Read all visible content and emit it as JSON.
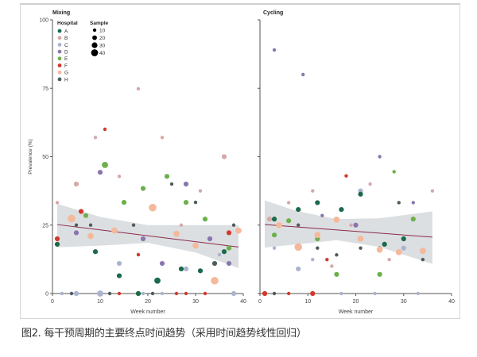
{
  "caption": "图2. 每干预周期的主要终点时间趋势（采用时间趋势线性回归）",
  "colors": {
    "A": "#1b6a4a",
    "B": "#d6a8a8",
    "C": "#aab4d0",
    "D": "#8a76ae",
    "E": "#6cb04b",
    "F": "#d3382d",
    "G": "#f4b99b",
    "H": "#4e5c5c"
  },
  "legend": {
    "hospital_title": "Hospital",
    "hospitals": [
      "A",
      "B",
      "C",
      "D",
      "E",
      "F",
      "G",
      "H"
    ],
    "sample_title": "Sample",
    "samples": [
      10,
      20,
      30,
      40
    ]
  },
  "chart_data": [
    {
      "type": "scatter",
      "title": "Mixing",
      "xlabel": "Week number",
      "ylabel": "Prevalence (%)",
      "xlim": [
        0,
        40
      ],
      "ylim": [
        0,
        100
      ],
      "xticks": [
        0,
        10,
        20,
        30,
        40
      ],
      "yticks": [
        0,
        25,
        50,
        75,
        100
      ],
      "trend": {
        "x": [
          1,
          39
        ],
        "y": [
          25.2,
          17
        ]
      },
      "band": {
        "x": [
          1,
          10,
          20,
          30,
          39
        ],
        "upper": [
          32.8,
          28,
          25,
          25,
          25
        ],
        "lower": [
          16.9,
          17.5,
          18.5,
          15,
          9.3
        ]
      },
      "points": [
        [
          "B",
          1,
          33.2,
          10
        ],
        [
          "G",
          4,
          27.4,
          40
        ],
        [
          "F",
          6,
          30,
          20
        ],
        [
          "E",
          7,
          28.5,
          20
        ],
        [
          "H",
          5,
          25,
          10
        ],
        [
          "H",
          8,
          25,
          10
        ],
        [
          "D",
          5,
          22.2,
          20
        ],
        [
          "F",
          1,
          20,
          20
        ],
        [
          "A",
          1,
          18,
          20
        ],
        [
          "G",
          8,
          21,
          30
        ],
        [
          "A",
          9,
          15.3,
          20
        ],
        [
          "B",
          5,
          40,
          20
        ],
        [
          "B",
          9,
          57,
          10
        ],
        [
          "F",
          11,
          60,
          10
        ],
        [
          "E",
          11,
          47,
          30
        ],
        [
          "D",
          10,
          44.3,
          20
        ],
        [
          "B",
          14,
          42.8,
          10
        ],
        [
          "E",
          15,
          33.3,
          20
        ],
        [
          "G",
          13,
          23,
          30
        ],
        [
          "C",
          14,
          11,
          20
        ],
        [
          "A",
          14,
          6.5,
          20
        ],
        [
          "B",
          18,
          74.8,
          10
        ],
        [
          "E",
          19,
          38.4,
          20
        ],
        [
          "H",
          17,
          25,
          10
        ],
        [
          "D",
          19,
          20,
          20
        ],
        [
          "F",
          18,
          14.2,
          10
        ],
        [
          "G",
          21,
          31.4,
          40
        ],
        [
          "A",
          22,
          4.7,
          30
        ],
        [
          "B",
          23,
          57,
          10
        ],
        [
          "E",
          24,
          42.8,
          20
        ],
        [
          "H",
          25,
          40,
          10
        ],
        [
          "D",
          28,
          40,
          20
        ],
        [
          "E",
          28,
          33.3,
          20
        ],
        [
          "H",
          30,
          33.3,
          10
        ],
        [
          "B",
          31,
          37.5,
          10
        ],
        [
          "E",
          32,
          27.2,
          20
        ],
        [
          "B",
          27,
          25,
          10
        ],
        [
          "G",
          26,
          21.8,
          30
        ],
        [
          "D",
          33,
          20,
          20
        ],
        [
          "G",
          30,
          17.5,
          30
        ],
        [
          "D",
          23,
          11,
          20
        ],
        [
          "A",
          27,
          9,
          20
        ],
        [
          "C",
          28,
          9,
          20
        ],
        [
          "A",
          31,
          8.3,
          20
        ],
        [
          "G",
          34,
          4.7,
          40
        ],
        [
          "H",
          34,
          11,
          20
        ],
        [
          "C",
          35,
          14.2,
          10
        ],
        [
          "A",
          36,
          15.3,
          20
        ],
        [
          "E",
          37,
          16.6,
          20
        ],
        [
          "F",
          37,
          22.2,
          20
        ],
        [
          "D",
          37,
          11,
          20
        ],
        [
          "B",
          36,
          50,
          20
        ],
        [
          "H",
          38,
          25,
          10
        ],
        [
          "G",
          39,
          23,
          30
        ],
        [
          "C",
          2,
          0,
          10
        ],
        [
          "H",
          4,
          0,
          10
        ],
        [
          "C",
          5,
          0,
          20
        ],
        [
          "C",
          10,
          0,
          30
        ],
        [
          "H",
          12,
          0,
          10
        ],
        [
          "F",
          14,
          0,
          10
        ],
        [
          "A",
          18,
          0,
          20
        ],
        [
          "C",
          19,
          0,
          10
        ],
        [
          "H",
          21,
          0,
          10
        ],
        [
          "C",
          23,
          0,
          10
        ],
        [
          "F",
          26,
          0,
          10
        ],
        [
          "F",
          28,
          0,
          10
        ],
        [
          "F",
          32,
          0,
          10
        ],
        [
          "C",
          38,
          0,
          20
        ]
      ]
    },
    {
      "type": "scatter",
      "title": "Cycling",
      "xlabel": "Week number",
      "xlim": [
        0,
        40
      ],
      "ylim": [
        0,
        100
      ],
      "xticks": [
        0,
        10,
        20,
        30,
        40
      ],
      "yticks": [
        0,
        25,
        50,
        75,
        100
      ],
      "trend": {
        "x": [
          1,
          36
        ],
        "y": [
          25.2,
          20.6
        ]
      },
      "band": {
        "x": [
          1,
          8,
          16,
          25,
          36
        ],
        "upper": [
          34,
          30,
          27.2,
          27.5,
          30
        ],
        "lower": [
          16.8,
          18,
          19.5,
          17,
          10.8
        ]
      },
      "points": [
        [
          "D",
          3,
          89,
          10
        ],
        [
          "D",
          9,
          80,
          10
        ],
        [
          "D",
          25,
          50,
          10
        ],
        [
          "E",
          28,
          44.5,
          10
        ],
        [
          "F",
          18,
          43,
          10
        ],
        [
          "B",
          23,
          40,
          10
        ],
        [
          "C",
          21,
          37.5,
          20
        ],
        [
          "A",
          21,
          36.3,
          20
        ],
        [
          "B",
          11,
          37.5,
          10
        ],
        [
          "B",
          36,
          37.5,
          10
        ],
        [
          "B",
          6,
          33.2,
          10
        ],
        [
          "A",
          12,
          33.2,
          20
        ],
        [
          "H",
          29,
          33.2,
          10
        ],
        [
          "D",
          32,
          33.2,
          10
        ],
        [
          "A",
          8,
          30.7,
          20
        ],
        [
          "A",
          17,
          30.7,
          20
        ],
        [
          "D",
          13,
          28.5,
          10
        ],
        [
          "B",
          2,
          27.2,
          20
        ],
        [
          "A",
          3,
          27.2,
          20
        ],
        [
          "E",
          6,
          26.6,
          20
        ],
        [
          "G",
          16,
          27,
          30
        ],
        [
          "E",
          32,
          27.2,
          20
        ],
        [
          "G",
          4,
          25,
          30
        ],
        [
          "H",
          8,
          25,
          10
        ],
        [
          "B",
          19,
          25,
          10
        ],
        [
          "D",
          20,
          25,
          20
        ],
        [
          "E",
          3,
          21.4,
          20
        ],
        [
          "E",
          12,
          20,
          20
        ],
        [
          "G",
          12,
          21.4,
          30
        ],
        [
          "G",
          21,
          20,
          30
        ],
        [
          "A",
          30,
          20,
          20
        ],
        [
          "A",
          26,
          18,
          20
        ],
        [
          "G",
          8,
          17,
          40
        ],
        [
          "C",
          3,
          16.6,
          10
        ],
        [
          "H",
          12,
          16.6,
          10
        ],
        [
          "H",
          21,
          16.6,
          10
        ],
        [
          "H",
          25,
          16.6,
          10
        ],
        [
          "G",
          25,
          16,
          30
        ],
        [
          "C",
          30,
          16.6,
          20
        ],
        [
          "G",
          29,
          15.1,
          30
        ],
        [
          "G",
          34,
          15.6,
          30
        ],
        [
          "H",
          16,
          14.1,
          10
        ],
        [
          "C",
          11,
          12.4,
          10
        ],
        [
          "F",
          14,
          12.4,
          10
        ],
        [
          "B",
          27,
          12.4,
          10
        ],
        [
          "H",
          34,
          12.4,
          10
        ],
        [
          "B",
          15,
          10,
          10
        ],
        [
          "C",
          8,
          9,
          20
        ],
        [
          "E",
          16,
          7,
          20
        ],
        [
          "E",
          25,
          7,
          20
        ],
        [
          "F",
          1,
          0,
          20
        ],
        [
          "H",
          3,
          0,
          10
        ],
        [
          "F",
          6,
          0,
          10
        ],
        [
          "F",
          11,
          0,
          20
        ],
        [
          "C",
          17,
          0,
          10
        ],
        [
          "C",
          24,
          0,
          10
        ],
        [
          "C",
          33,
          0,
          10
        ]
      ]
    }
  ]
}
